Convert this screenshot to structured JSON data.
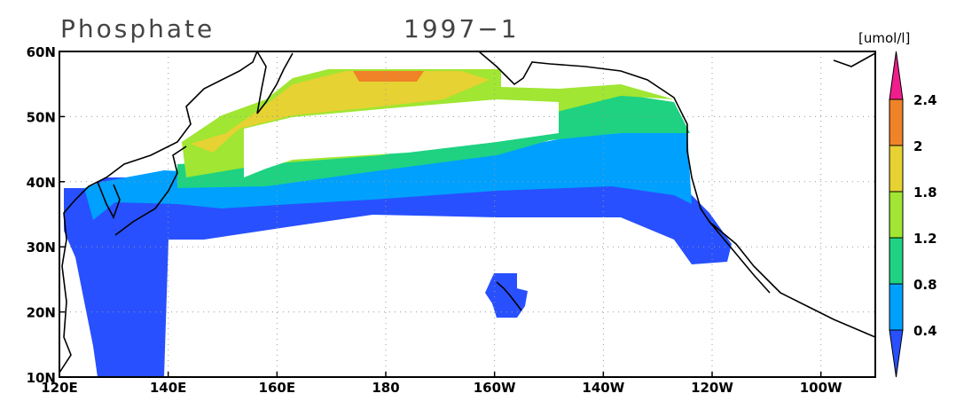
{
  "header": {
    "title": "Phosphate",
    "period": "1997−1",
    "units": "[umol/l]"
  },
  "map": {
    "lat_labels": [
      "60N",
      "50N",
      "40N",
      "30N",
      "20N",
      "10N"
    ],
    "lon_labels": [
      "120E",
      "140E",
      "160E",
      "180",
      "160W",
      "140W",
      "120W",
      "100W"
    ]
  },
  "colorbar": {
    "labels": [
      "2.4",
      "2",
      "1.8",
      "1.2",
      "0.8",
      "0.4"
    ],
    "colors": [
      "#f01e8c",
      "#f08228",
      "#e6d232",
      "#a0e632",
      "#1ed282",
      "#00a0ff",
      "#2850ff"
    ]
  }
}
